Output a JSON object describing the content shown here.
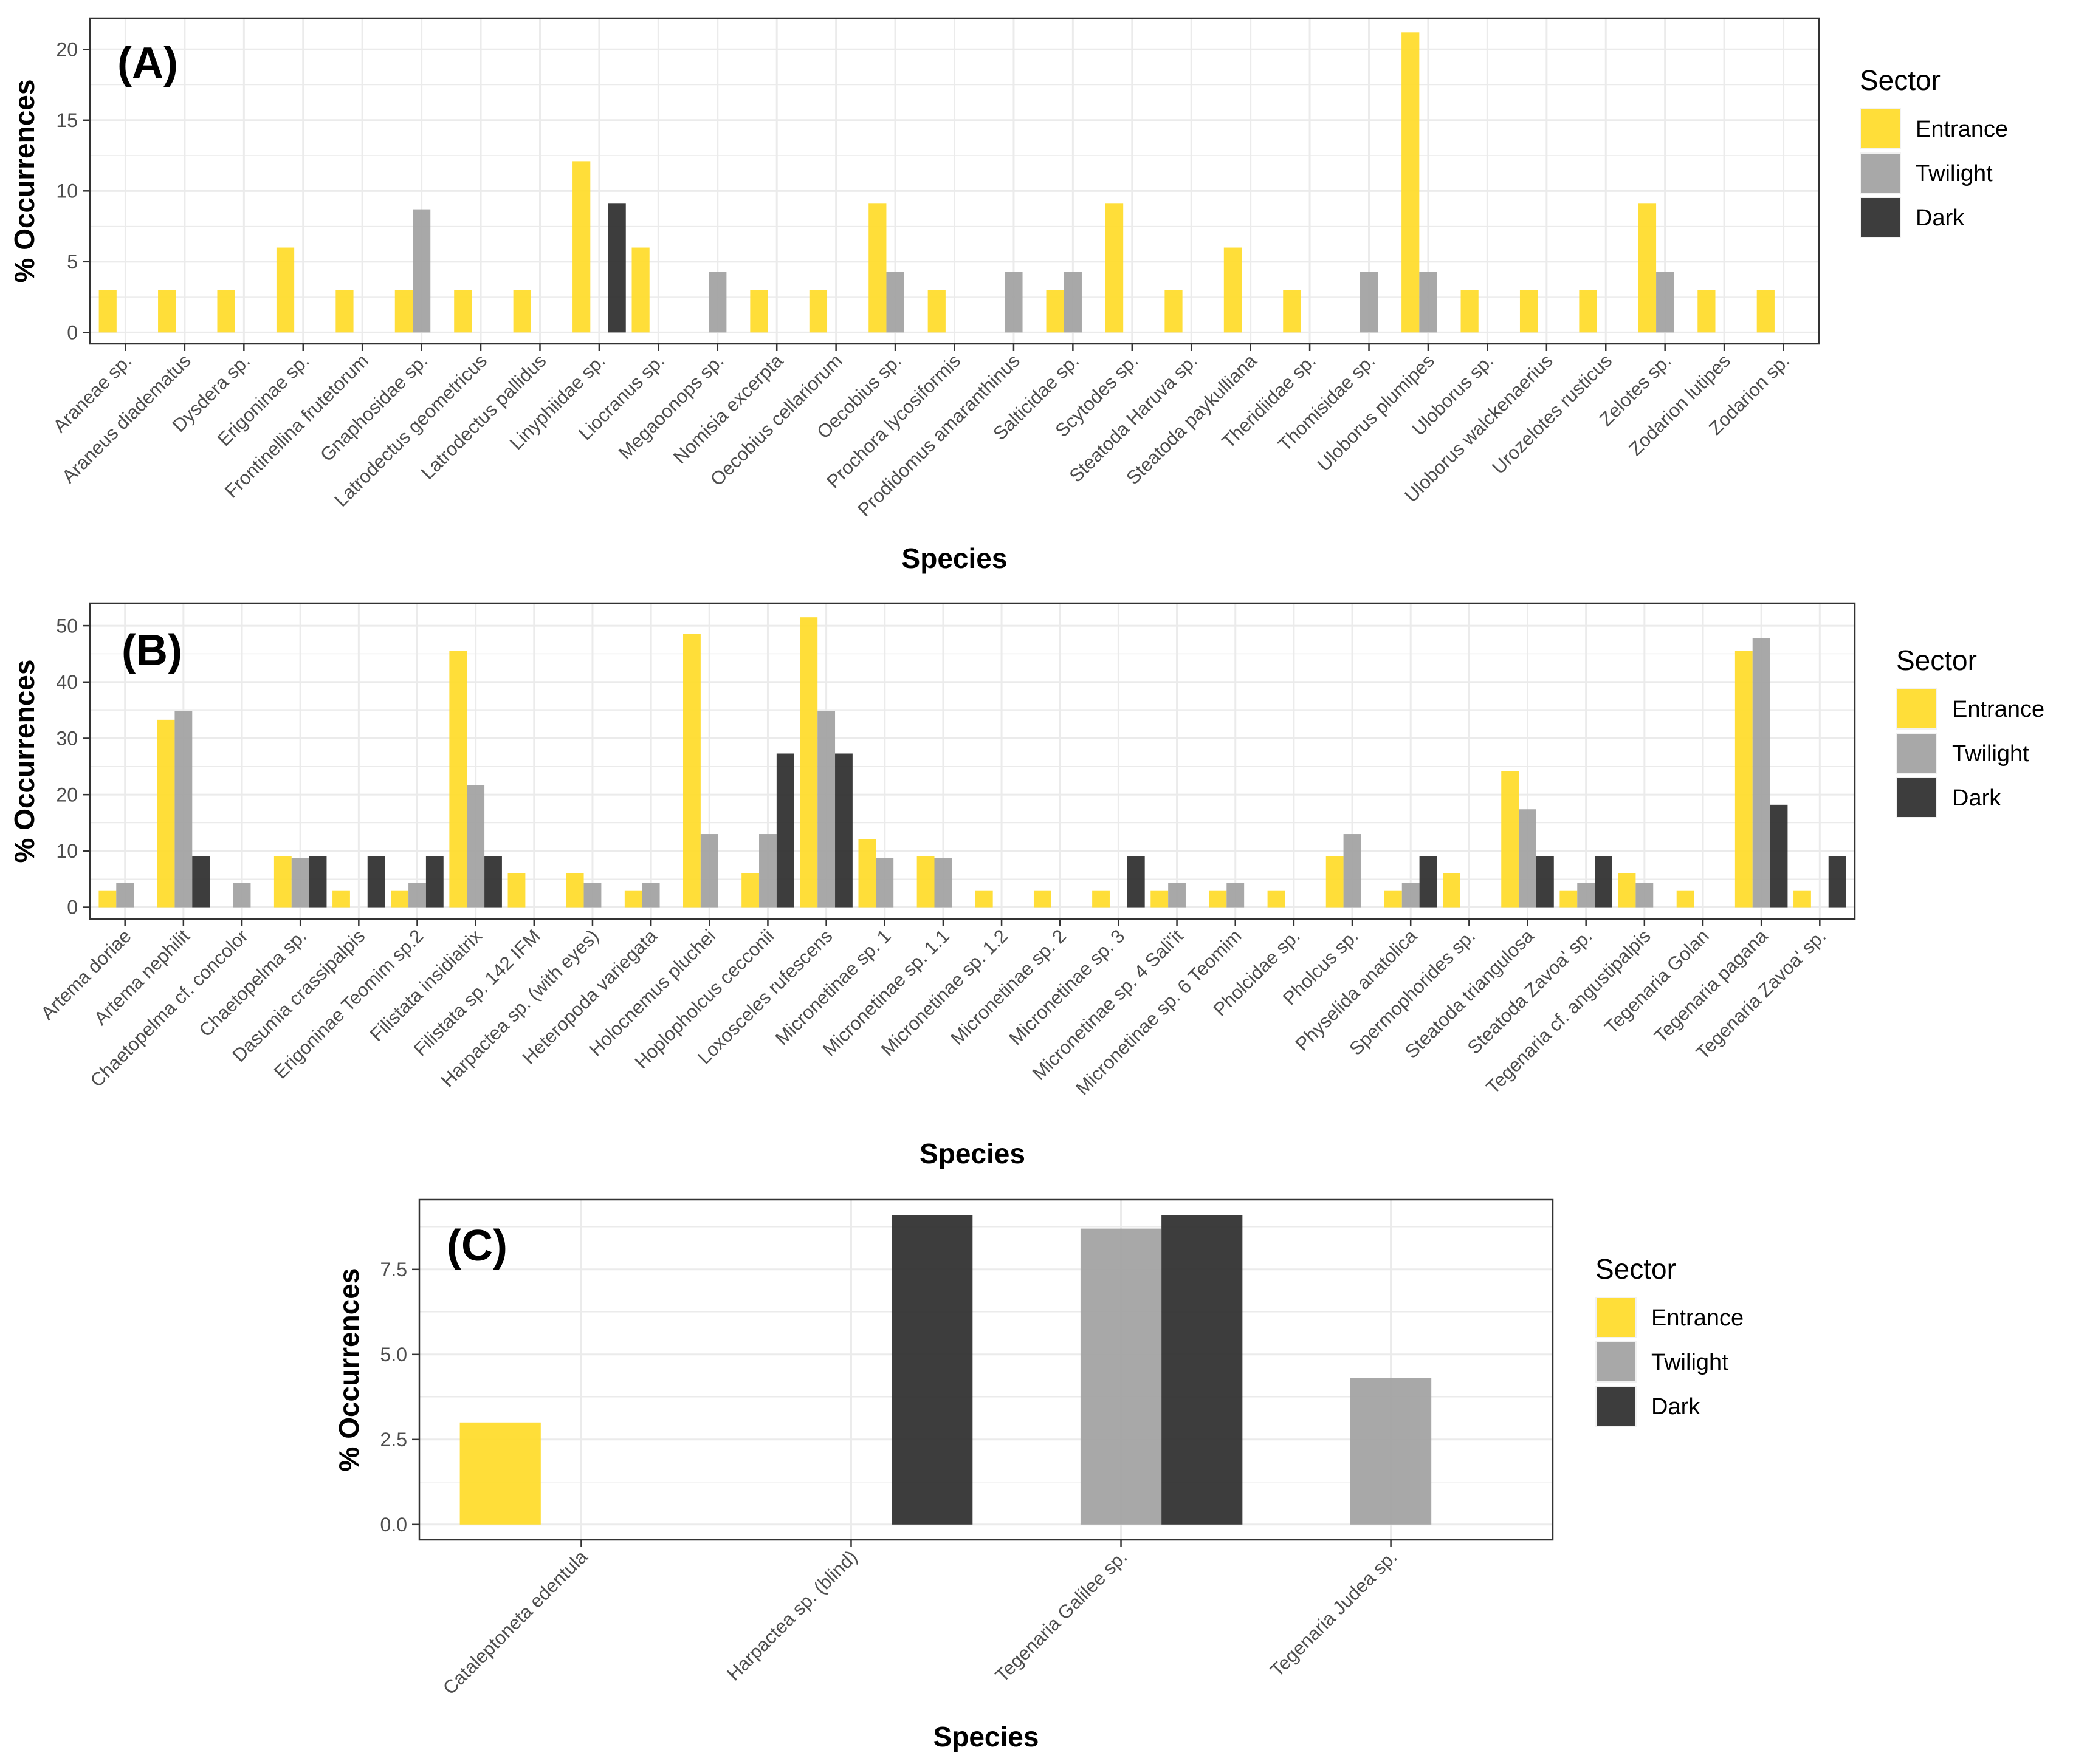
{
  "legend_title": "Sector",
  "sectors": [
    "Entrance",
    "Twilight",
    "Dark"
  ],
  "colors": {
    "Entrance": "#FFDC2E",
    "Twilight": "#A3A3A3",
    "Dark": "#333333"
  },
  "chart_data": [
    {
      "type": "bar",
      "panel_label": "(A)",
      "title": "",
      "xlabel": "Species",
      "ylabel": "% Occurrences",
      "ylim": [
        -0.8,
        22.2
      ],
      "yticks": [
        0,
        5,
        10,
        15,
        20
      ],
      "ytick_labels": [
        "0",
        "5",
        "10",
        "15",
        "20"
      ],
      "categories": [
        "Araneae sp.",
        "Araneus diadematus",
        "Dysdera sp.",
        "Erigoninae sp.",
        "Frontinellina frutetorum",
        "Gnaphosidae sp.",
        "Latrodectus geometricus",
        "Latrodectus pallidus",
        "Linyphiidae sp.",
        "Liocranus sp.",
        "Megaoonops sp.",
        "Nomisia excerpta",
        "Oecobius cellariorum",
        "Oecobius sp.",
        "Prochora lycosiformis",
        "Prodidomus amaranthinus",
        "Salticidae sp.",
        "Scytodes sp.",
        "Steatoda Haruva sp.",
        "Steatoda paykulliana",
        "Theridiidae sp.",
        "Thomisidae sp.",
        "Uloborus plumipes",
        "Uloborus sp.",
        "Uloborus walckenaerius",
        "Urozelotes rusticus",
        "Zelotes sp.",
        "Zodarion lutipes",
        "Zodarion sp."
      ],
      "series": [
        {
          "name": "Entrance",
          "values": [
            3,
            3,
            3,
            6,
            3,
            3,
            3,
            3,
            12.1,
            6,
            null,
            3,
            3,
            9.1,
            3,
            null,
            3,
            9.1,
            3,
            6,
            3,
            null,
            21.2,
            3,
            3,
            3,
            9.1,
            3,
            3
          ]
        },
        {
          "name": "Twilight",
          "values": [
            null,
            null,
            null,
            null,
            null,
            8.7,
            null,
            null,
            null,
            null,
            4.3,
            null,
            null,
            4.3,
            null,
            4.3,
            4.3,
            null,
            null,
            null,
            null,
            4.3,
            4.3,
            null,
            null,
            null,
            4.3,
            null,
            null
          ]
        },
        {
          "name": "Dark",
          "values": [
            null,
            null,
            null,
            null,
            null,
            null,
            null,
            null,
            9.1,
            null,
            null,
            null,
            null,
            null,
            null,
            null,
            null,
            null,
            null,
            null,
            null,
            null,
            null,
            null,
            null,
            null,
            null,
            null,
            null
          ]
        }
      ]
    },
    {
      "type": "bar",
      "panel_label": "(B)",
      "title": "",
      "xlabel": "Species",
      "ylabel": "% Occurrences",
      "ylim": [
        -2.1,
        54
      ],
      "yticks": [
        0,
        10,
        20,
        30,
        40,
        50
      ],
      "ytick_labels": [
        "0",
        "10",
        "20",
        "30",
        "40",
        "50"
      ],
      "categories": [
        "Artema doriae",
        "Artema nephilit",
        "Chaetopelma cf. concolor",
        "Chaetopelma sp.",
        "Dasumia crassipalpis",
        "Erigoninae Teomim sp.2",
        "Filistata insidiatrix",
        "Filistata sp. 142 IFM",
        "Harpactea sp. (with eyes)",
        "Heteropoda variegata",
        "Holocnemus pluchei",
        "Hoplopholcus cecconii",
        "Loxosceles rufescens",
        "Micronetinae sp. 1",
        "Micronetinae sp. 1.1",
        "Micronetinae sp. 1.2",
        "Micronetinae sp. 2",
        "Micronetinae sp. 3",
        "Micronetinae sp. 4 Sali'it",
        "Micronetinae sp. 6 Teomim",
        "Pholcidae sp.",
        "Pholcus sp.",
        "Physelida anatolica",
        "Spermophorides sp.",
        "Steatoda triangulosa",
        "Steatoda Zavoa' sp.",
        "Tegenaria cf. angustipalpis",
        "Tegenaria Golan",
        "Tegenaria pagana",
        "Tegenaria Zavoa' sp."
      ],
      "series": [
        {
          "name": "Entrance",
          "values": [
            3,
            33.3,
            null,
            9.1,
            3,
            3,
            45.5,
            6,
            6,
            3,
            48.5,
            6,
            51.5,
            12.1,
            9.1,
            3,
            3,
            3,
            3,
            3,
            3,
            9.1,
            3,
            6,
            24.2,
            3,
            6,
            3,
            45.5,
            3
          ]
        },
        {
          "name": "Twilight",
          "values": [
            4.3,
            34.8,
            4.3,
            8.7,
            null,
            4.3,
            21.7,
            null,
            4.3,
            4.3,
            13,
            13,
            34.8,
            8.7,
            8.7,
            null,
            null,
            null,
            4.3,
            4.3,
            null,
            13,
            4.3,
            null,
            17.4,
            4.3,
            4.3,
            null,
            47.8,
            null
          ]
        },
        {
          "name": "Dark",
          "values": [
            null,
            9.1,
            null,
            9.1,
            9.1,
            9.1,
            9.1,
            null,
            null,
            null,
            null,
            27.3,
            27.3,
            null,
            null,
            null,
            null,
            9.1,
            null,
            null,
            null,
            null,
            9.1,
            null,
            9.1,
            9.1,
            null,
            null,
            18.2,
            9.1
          ]
        }
      ]
    },
    {
      "type": "bar",
      "panel_label": "(C)",
      "title": "",
      "xlabel": "Species",
      "ylabel": "% Occurrences",
      "ylim": [
        -0.45,
        9.55
      ],
      "yticks": [
        0,
        2.5,
        5,
        7.5
      ],
      "ytick_labels": [
        "0.0",
        "2.5",
        "5.0",
        "7.5"
      ],
      "categories": [
        "Cataleptoneta edentula",
        "Harpactea sp. (blind)",
        "Tegenaria Galilee sp.",
        "Tegenaria Judea sp."
      ],
      "series": [
        {
          "name": "Entrance",
          "values": [
            3,
            null,
            null,
            null
          ]
        },
        {
          "name": "Twilight",
          "values": [
            null,
            null,
            8.7,
            4.3
          ]
        },
        {
          "name": "Dark",
          "values": [
            null,
            9.1,
            9.1,
            null
          ]
        }
      ]
    }
  ]
}
